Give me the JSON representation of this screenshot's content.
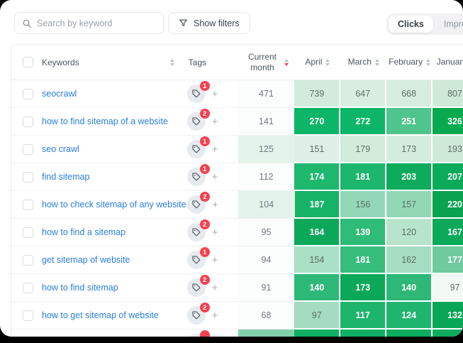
{
  "toolbar": {
    "search_placeholder": "Search by keyword",
    "show_filters_label": "Show filters",
    "view_toggle": {
      "options": [
        "Clicks",
        "Impressions"
      ],
      "selected": "Clicks"
    }
  },
  "table": {
    "headers": {
      "keywords": "Keywords",
      "tags": "Tags"
    },
    "month_columns": [
      {
        "label": "Current month",
        "sort": "desc-active"
      },
      {
        "label": "April",
        "sort": "none"
      },
      {
        "label": "March",
        "sort": "none"
      },
      {
        "label": "February",
        "sort": "none"
      },
      {
        "label": "January",
        "sort": "none"
      }
    ],
    "colors": {
      "accent_green": "#0cb567",
      "sort_active_red": "#ee4156",
      "badge_red": "#f44250",
      "link_blue": "#2b7fdb"
    },
    "rows": [
      {
        "keyword": "seocrawl",
        "tag_count": "1",
        "current_month": {
          "v": "471",
          "bg": "#fbfcfc"
        },
        "cells": [
          {
            "v": "739",
            "bg": "#d3ebdc"
          },
          {
            "v": "647",
            "bg": "#d9eee1"
          },
          {
            "v": "668",
            "bg": "#d6ecde"
          },
          {
            "v": "807",
            "bg": "#cfe9d9"
          }
        ]
      },
      {
        "keyword": "how to find sitemap of a website",
        "tag_count": "2",
        "current_month": {
          "v": "141",
          "bg": "#fbfcfc"
        },
        "cells": [
          {
            "v": "270",
            "bg": "#0cb567",
            "wt": true
          },
          {
            "v": "272",
            "bg": "#0cb567",
            "wt": true
          },
          {
            "v": "251",
            "bg": "#4fc48c",
            "wt": true
          },
          {
            "v": "326",
            "bg": "#09a94f",
            "wt": true
          }
        ]
      },
      {
        "keyword": "seo crawl",
        "tag_count": "1",
        "current_month": {
          "v": "125",
          "bg": "#e4f3ea"
        },
        "cells": [
          {
            "v": "151",
            "bg": "#def0e6"
          },
          {
            "v": "179",
            "bg": "#d2ebdb"
          },
          {
            "v": "173",
            "bg": "#d4ecdd"
          },
          {
            "v": "193",
            "bg": "#cfe9d8"
          }
        ]
      },
      {
        "keyword": "find sitemap",
        "tag_count": "1",
        "current_month": {
          "v": "112",
          "bg": "#fbfcfc"
        },
        "cells": [
          {
            "v": "174",
            "bg": "#1eb76e",
            "wt": true
          },
          {
            "v": "181",
            "bg": "#1cb66d",
            "wt": true
          },
          {
            "v": "203",
            "bg": "#0dab5c",
            "wt": true
          },
          {
            "v": "207",
            "bg": "#0caa5b",
            "wt": true
          }
        ]
      },
      {
        "keyword": "how to check sitemap of any website",
        "tag_count": "2",
        "current_month": {
          "v": "104",
          "bg": "#e4f3ea"
        },
        "cells": [
          {
            "v": "187",
            "bg": "#16b266",
            "wt": true
          },
          {
            "v": "156",
            "bg": "#93d8b6"
          },
          {
            "v": "157",
            "bg": "#92d8b5"
          },
          {
            "v": "220",
            "bg": "#09a251",
            "wt": true
          }
        ]
      },
      {
        "keyword": "how to find a sitemap",
        "tag_count": "2",
        "current_month": {
          "v": "95",
          "bg": "#fbfcfc"
        },
        "cells": [
          {
            "v": "164",
            "bg": "#0ca85a",
            "wt": true
          },
          {
            "v": "139",
            "bg": "#2fbc79",
            "wt": true
          },
          {
            "v": "120",
            "bg": "#b7e4cb"
          },
          {
            "v": "167",
            "bg": "#0baa5b",
            "wt": true
          }
        ]
      },
      {
        "keyword": "get sitemap of website",
        "tag_count": "1",
        "current_month": {
          "v": "94",
          "bg": "#fbfcfc"
        },
        "cells": [
          {
            "v": "154",
            "bg": "#a9dfc3"
          },
          {
            "v": "181",
            "bg": "#36bd7c",
            "wt": true
          },
          {
            "v": "162",
            "bg": "#a5ddc1"
          },
          {
            "v": "177",
            "bg": "#6fcb9d",
            "wt": true
          }
        ]
      },
      {
        "keyword": "how to find sitemap",
        "tag_count": "2",
        "current_month": {
          "v": "91",
          "bg": "#fbfcfc"
        },
        "cells": [
          {
            "v": "140",
            "bg": "#2eb877",
            "wt": true
          },
          {
            "v": "173",
            "bg": "#0ca85a",
            "wt": true
          },
          {
            "v": "140",
            "bg": "#2eb877",
            "wt": true
          },
          {
            "v": "97",
            "bg": "#f2f8f4"
          }
        ]
      },
      {
        "keyword": "how to get sitemap of website",
        "tag_count": "2",
        "current_month": {
          "v": "68",
          "bg": "#fbfcfc"
        },
        "cells": [
          {
            "v": "97",
            "bg": "#a3dcc0"
          },
          {
            "v": "117",
            "bg": "#1db46c",
            "wt": true
          },
          {
            "v": "124",
            "bg": "#20b56f",
            "wt": true
          },
          {
            "v": "132",
            "bg": "#0aa658",
            "wt": true
          }
        ]
      },
      {
        "keyword": "",
        "tag_count": "",
        "partial": true,
        "current_month": {
          "v": "",
          "bg": "#82d2ab"
        },
        "cells": [
          {
            "v": "",
            "bg": "#10b164"
          },
          {
            "v": "",
            "bg": "#10b164"
          },
          {
            "v": "",
            "bg": "#0cae5e"
          },
          {
            "v": "",
            "bg": "#0cae5e"
          }
        ]
      }
    ]
  }
}
